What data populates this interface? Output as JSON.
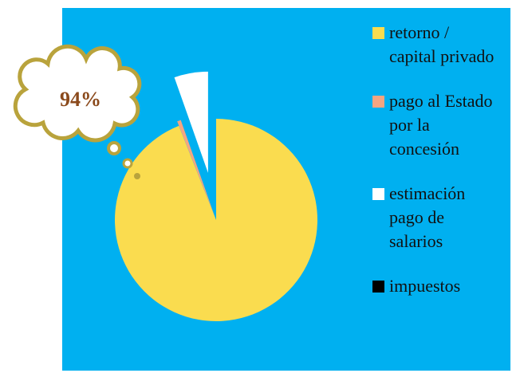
{
  "chart_data": {
    "type": "pie",
    "categories": [
      "retorno / capital privado",
      "pago al Estado por la concesión",
      "estimación pago de salarios",
      "impuestos"
    ],
    "values": [
      94,
      0.6,
      5.4,
      0
    ],
    "value_labels": [
      "94%",
      null,
      null,
      null
    ],
    "colors": [
      "#fadc4f",
      "#f4a582",
      "#ffffff",
      "#000000"
    ],
    "legend": "right"
  }
}
